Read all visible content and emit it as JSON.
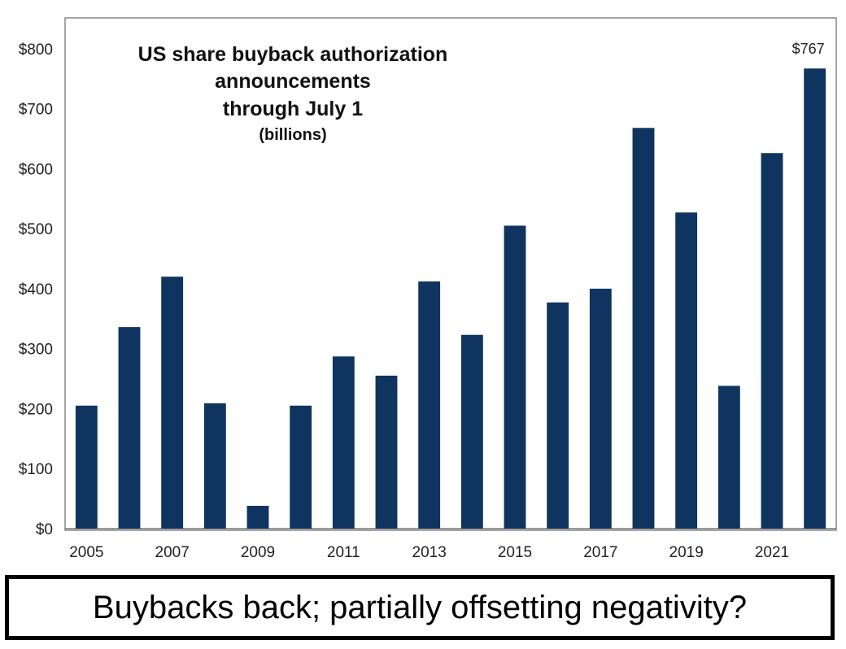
{
  "chart_data": {
    "type": "bar",
    "title_lines": [
      "US share buyback authorization",
      "announcements",
      "through July 1"
    ],
    "subtitle": "(billions)",
    "categories": [
      "2005",
      "2006",
      "2007",
      "2008",
      "2009",
      "2010",
      "2011",
      "2012",
      "2013",
      "2014",
      "2015",
      "2016",
      "2017",
      "2018",
      "2019",
      "2020",
      "2021",
      "2022"
    ],
    "x_tick_labels": [
      "2005",
      "",
      "2007",
      "",
      "2009",
      "",
      "2011",
      "",
      "2013",
      "",
      "2015",
      "",
      "2017",
      "",
      "2019",
      "",
      "2021",
      ""
    ],
    "values": [
      205,
      336,
      420,
      209,
      38,
      205,
      287,
      255,
      412,
      323,
      505,
      377,
      400,
      668,
      527,
      238,
      626,
      767
    ],
    "y_ticks": [
      0,
      100,
      200,
      300,
      400,
      500,
      600,
      700,
      800
    ],
    "y_tick_labels": [
      "$0",
      "$100",
      "$200",
      "$300",
      "$400",
      "$500",
      "$600",
      "$700",
      "$800"
    ],
    "ylim": [
      0,
      850
    ],
    "bar_color": "#0f3460",
    "grid": false,
    "annotation": {
      "category": "2022",
      "text": "$767"
    }
  },
  "caption": "Buybacks back; partially offsetting negativity?"
}
